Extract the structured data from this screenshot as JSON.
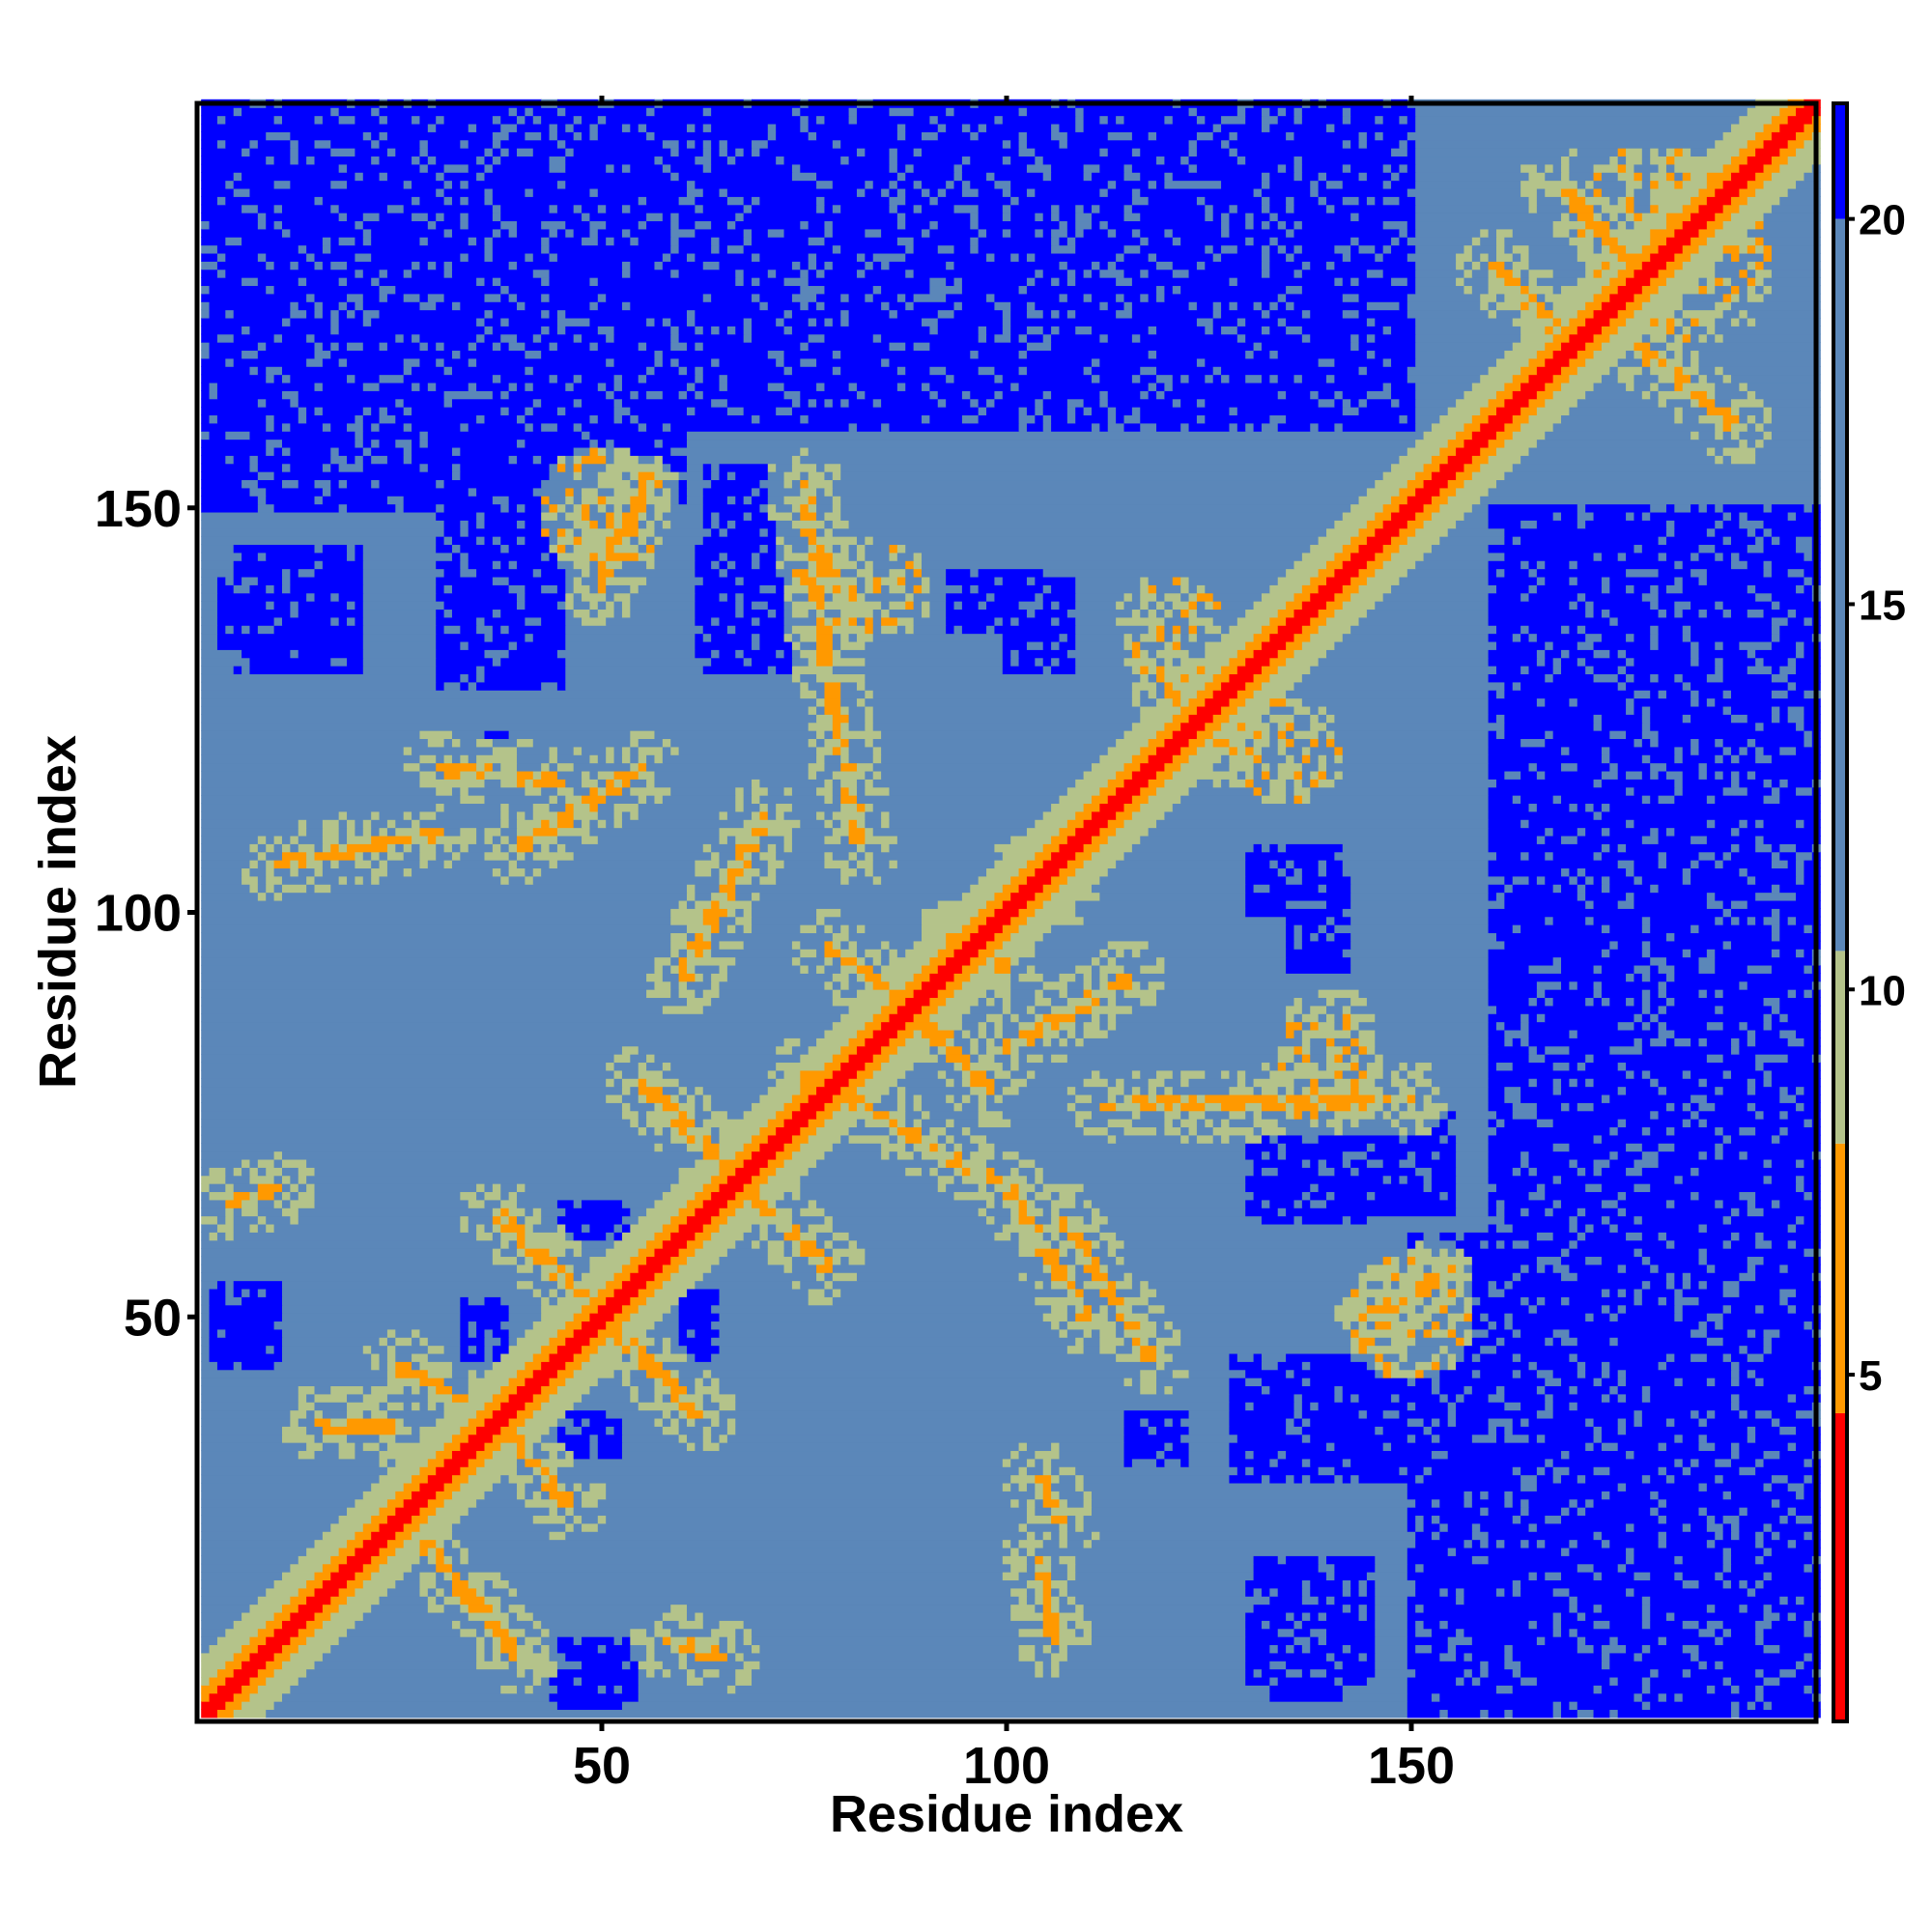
{
  "chart_data": {
    "type": "heatmap",
    "title": "",
    "xlabel": "Residue index",
    "ylabel": "Residue index",
    "n_residues": 200,
    "xlim": [
      1,
      200
    ],
    "ylim": [
      1,
      200
    ],
    "x_ticks": [
      {
        "value": 50,
        "label": "50"
      },
      {
        "value": 100,
        "label": "100"
      },
      {
        "value": 150,
        "label": "150"
      }
    ],
    "y_ticks": [
      {
        "value": 50,
        "label": "50"
      },
      {
        "value": 100,
        "label": "100"
      },
      {
        "value": 150,
        "label": "150"
      }
    ],
    "colorbar": {
      "min": 0.5,
      "max": 21.5,
      "ticks": [
        {
          "value": 5,
          "label": "5"
        },
        {
          "value": 10,
          "label": "10"
        },
        {
          "value": 15,
          "label": "15"
        },
        {
          "value": 20,
          "label": "20"
        }
      ],
      "bands": [
        {
          "from": 0.5,
          "to": 4.5,
          "color": "#ff0000"
        },
        {
          "from": 4.5,
          "to": 8.0,
          "color": "#ff9900"
        },
        {
          "from": 8.0,
          "to": 10.5,
          "color": "#b4c38a"
        },
        {
          "from": 10.5,
          "to": 20.0,
          "color": "#5b87b9"
        },
        {
          "from": 20.0,
          "to": 21.5,
          "color": "#0000ff"
        }
      ]
    },
    "value_bands": {
      "diagonal": 2,
      "near_diagonal": 6,
      "contact": 7,
      "halo": 9.5,
      "background": 15,
      "far": 21
    },
    "contact_lines": [
      {
        "from": [
          25,
          44
        ],
        "to": [
          37,
          37
        ]
      },
      {
        "from": [
          37,
          37
        ],
        "to": [
          46,
          27
        ]
      },
      {
        "from": [
          37,
          63
        ],
        "to": [
          50,
          50
        ]
      },
      {
        "from": [
          50,
          50
        ],
        "to": [
          62,
          38
        ]
      },
      {
        "from": [
          55,
          79
        ],
        "to": [
          67,
          67
        ]
      },
      {
        "from": [
          67,
          67
        ],
        "to": [
          78,
          56
        ]
      },
      {
        "from": [
          78,
          96
        ],
        "to": [
          88,
          88
        ]
      },
      {
        "from": [
          88,
          88
        ],
        "to": [
          98,
          78
        ]
      },
      {
        "from": [
          83,
          91
        ],
        "to": [
          93,
          84
        ]
      },
      {
        "from": [
          93,
          97
        ],
        "to": [
          100,
          93
        ]
      },
      {
        "from": [
          103,
          106
        ],
        "to": [
          107,
          103
        ]
      },
      {
        "from": [
          120,
          128
        ],
        "to": [
          128,
          120
        ]
      },
      {
        "from": [
          75,
          153
        ],
        "to": [
          78,
          130
        ]
      },
      {
        "from": [
          78,
          130
        ],
        "to": [
          82,
          108
        ]
      },
      {
        "from": [
          55,
          152
        ],
        "to": [
          50,
          140
        ]
      },
      {
        "from": [
          75,
          80
        ],
        "to": [
          100,
          66
        ]
      },
      {
        "from": [
          100,
          66
        ],
        "to": [
          110,
          50
        ]
      },
      {
        "from": [
          112,
          76
        ],
        "to": [
          150,
          77
        ]
      },
      {
        "from": [
          100,
          83
        ],
        "to": [
          115,
          92
        ]
      },
      {
        "from": [
          107,
          62
        ],
        "to": [
          118,
          45
        ]
      },
      {
        "from": [
          104,
          30
        ],
        "to": [
          107,
          25
        ]
      },
      {
        "from": [
          104,
          20
        ],
        "to": [
          106,
          10
        ]
      },
      {
        "from": [
          145,
          50
        ],
        "to": [
          153,
          55
        ]
      },
      {
        "from": [
          10,
          106
        ],
        "to": [
          30,
          110
        ]
      },
      {
        "from": [
          40,
          108
        ],
        "to": [
          55,
          118
        ]
      },
      {
        "from": [
          30,
          118
        ],
        "to": [
          45,
          116
        ]
      },
      {
        "from": [
          60,
          92
        ],
        "to": [
          70,
          112
        ]
      },
      {
        "from": [
          15,
          37
        ],
        "to": [
          25,
          36
        ]
      },
      {
        "from": [
          28,
          22
        ],
        "to": [
          40,
          8
        ]
      },
      {
        "from": [
          58,
          10
        ],
        "to": [
          65,
          8
        ]
      },
      {
        "from": [
          4,
          64
        ],
        "to": [
          10,
          66
        ]
      },
      {
        "from": [
          160,
          180
        ],
        "to": [
          170,
          170
        ]
      },
      {
        "from": [
          168,
          190
        ],
        "to": [
          180,
          178
        ]
      },
      {
        "from": [
          178,
          170
        ],
        "to": [
          190,
          160
        ]
      }
    ],
    "contact_blobs": [
      {
        "center": [
          50,
          150
        ],
        "radius": 8
      },
      {
        "center": [
          80,
          140
        ],
        "radius": 7
      },
      {
        "center": [
          120,
          135
        ],
        "radius": 7
      },
      {
        "center": [
          180,
          185
        ],
        "radius": 10
      },
      {
        "center": [
          140,
          85
        ],
        "radius": 6
      },
      {
        "center": [
          150,
          50
        ],
        "radius": 7
      }
    ],
    "far_regions": [
      {
        "x": [
          1,
          60
        ],
        "y": [
          150,
          200
        ]
      },
      {
        "x": [
          55,
          100
        ],
        "y": [
          160,
          200
        ]
      },
      {
        "x": [
          100,
          145
        ],
        "y": [
          180,
          200
        ]
      },
      {
        "x": [
          30,
          45
        ],
        "y": [
          128,
          145
        ]
      },
      {
        "x": [
          62,
          70
        ],
        "y": [
          132,
          145
        ]
      },
      {
        "x": [
          3,
          15
        ],
        "y": [
          133,
          141
        ]
      },
      {
        "x": [
          100,
          108
        ],
        "y": [
          130,
          141
        ]
      },
      {
        "x": [
          95,
          135
        ],
        "y": [
          172,
          186
        ]
      },
      {
        "x": [
          155,
          200
        ],
        "y": [
          1,
          60
        ]
      },
      {
        "x": [
          175,
          200
        ],
        "y": [
          60,
          80
        ]
      },
      {
        "x": [
          160,
          200
        ],
        "y": [
          80,
          150
        ]
      },
      {
        "x": [
          130,
          155
        ],
        "y": [
          63,
          75
        ]
      },
      {
        "x": [
          130,
          160
        ],
        "y": [
          30,
          45
        ]
      },
      {
        "x": [
          130,
          145
        ],
        "y": [
          5,
          20
        ]
      },
      {
        "x": [
          3,
          10
        ],
        "y": [
          44,
          54
        ]
      },
      {
        "x": [
          45,
          53
        ],
        "y": [
          2,
          8
        ]
      },
      {
        "x": [
          45,
          52
        ],
        "y": [
          33,
          38
        ]
      },
      {
        "x": [
          33,
          38
        ],
        "y": [
          45,
          52
        ]
      },
      {
        "x": [
          60,
          64
        ],
        "y": [
          45,
          53
        ]
      },
      {
        "x": [
          115,
          122
        ],
        "y": [
          32,
          38
        ]
      },
      {
        "x": [
          135,
          142
        ],
        "y": [
          93,
          105
        ]
      }
    ]
  }
}
